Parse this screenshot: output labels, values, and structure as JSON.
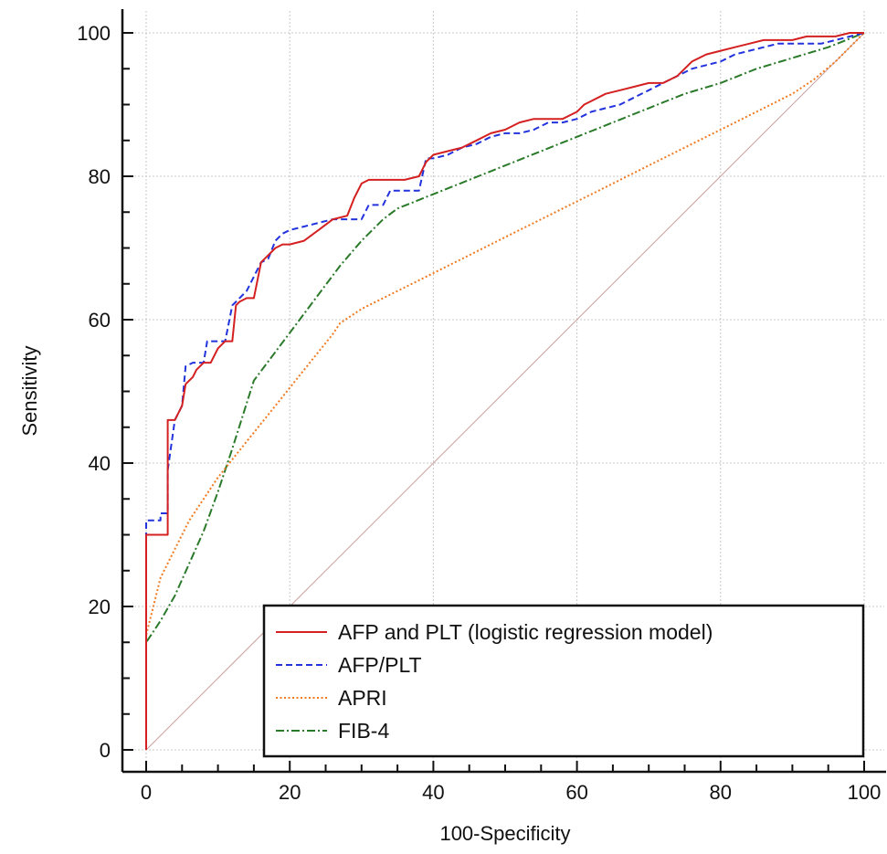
{
  "chart_data": {
    "type": "line",
    "xlabel": "100-Specificity",
    "ylabel": "Sensitivity",
    "xlim": [
      0,
      100
    ],
    "ylim": [
      0,
      100
    ],
    "x_ticks": [
      0,
      20,
      40,
      60,
      80,
      100
    ],
    "y_ticks": [
      0,
      20,
      40,
      60,
      80,
      100
    ],
    "grid": true,
    "legend_position": "bottom-right",
    "reference_line": {
      "x": [
        0,
        100
      ],
      "y": [
        0,
        100
      ],
      "color": "#c9a0a0"
    },
    "series": [
      {
        "name": "AFP and PLT (logistic regression model)",
        "color": "#d42020",
        "style": "solid",
        "x": [
          0,
          0,
          3,
          3,
          4,
          5,
          5.5,
          6.5,
          7,
          8,
          9,
          10,
          11,
          12,
          12.5,
          13,
          14,
          15,
          16,
          17,
          18,
          19,
          20,
          22,
          24,
          26,
          28,
          29,
          30,
          31,
          32,
          34,
          36,
          38,
          39,
          40,
          42,
          44,
          46,
          48,
          50,
          52,
          54,
          56,
          58,
          60,
          61,
          62,
          64,
          66,
          68,
          70,
          72,
          74,
          76,
          78,
          80,
          82,
          84,
          86,
          88,
          90,
          92,
          94,
          96,
          98,
          100
        ],
        "y": [
          0,
          30,
          30,
          46,
          46,
          48,
          51,
          52,
          53,
          54,
          54,
          56,
          57,
          57,
          62,
          62.5,
          63,
          63,
          68,
          69,
          70,
          70.5,
          70.5,
          71,
          72.5,
          74,
          74.5,
          77,
          79,
          79.5,
          79.5,
          79.5,
          79.5,
          80,
          82,
          83,
          83.5,
          84,
          85,
          86,
          86.5,
          87.5,
          88,
          88,
          88,
          89,
          90,
          90.5,
          91.5,
          92,
          92.5,
          93,
          93,
          94,
          96,
          97,
          97.5,
          98,
          98.5,
          99,
          99,
          99,
          99.5,
          99.5,
          99.5,
          100,
          100
        ]
      },
      {
        "name": "AFP/PLT",
        "color": "#2233dd",
        "style": "dashed",
        "x": [
          0,
          0,
          2,
          2,
          3,
          3,
          4,
          5,
          5.5,
          6.5,
          7,
          8,
          8.5,
          9,
          10,
          11,
          12,
          12.5,
          13,
          14,
          15,
          16,
          17,
          18,
          19,
          20,
          22,
          24,
          26,
          28,
          30,
          31,
          32,
          33,
          34,
          36,
          38,
          39,
          40,
          42,
          44,
          46,
          48,
          50,
          52,
          54,
          56,
          58,
          60,
          62,
          64,
          66,
          68,
          70,
          72,
          74,
          76,
          78,
          80,
          82,
          84,
          86,
          88,
          90,
          92,
          94,
          96,
          98,
          100
        ],
        "y": [
          0,
          32,
          32,
          33,
          33,
          39,
          46,
          48,
          53.5,
          54,
          54,
          54,
          57,
          57,
          57,
          57,
          62,
          62.5,
          63,
          64,
          66,
          68,
          68.5,
          71,
          72,
          72.5,
          73,
          73.5,
          74,
          74,
          74,
          76,
          76,
          76,
          78,
          78,
          78,
          82.5,
          82.5,
          83,
          84,
          84.5,
          85.5,
          86,
          86,
          86.5,
          87.5,
          87.5,
          88,
          89,
          89.5,
          90,
          91,
          92,
          93,
          94,
          95,
          95.5,
          96,
          97,
          97.5,
          98,
          98.5,
          98.5,
          98.5,
          98.5,
          99,
          99.5,
          100
        ]
      },
      {
        "name": "APRI",
        "color": "#f07a20",
        "style": "dotted",
        "x": [
          0,
          0,
          1,
          2,
          4,
          6,
          8,
          10,
          12,
          14,
          16,
          18,
          20,
          22,
          24,
          26,
          27,
          30,
          35,
          40,
          45,
          50,
          55,
          60,
          65,
          70,
          75,
          80,
          85,
          90,
          93,
          96,
          98,
          100
        ],
        "y": [
          0,
          16,
          20,
          24,
          28,
          32,
          35,
          38,
          40.5,
          43,
          45.5,
          48,
          50.5,
          53,
          55.5,
          58,
          59.5,
          61.5,
          64,
          66.5,
          69,
          71.5,
          74,
          76.5,
          79,
          81.5,
          84,
          86.5,
          89,
          91.5,
          93.5,
          96,
          98,
          100
        ]
      },
      {
        "name": "FIB-4",
        "color": "#2a7a2a",
        "style": "dashdot",
        "x": [
          0,
          0,
          1,
          2,
          4,
          6,
          8,
          10,
          12,
          15,
          18,
          21,
          24,
          27,
          30,
          33,
          35,
          40,
          45,
          50,
          55,
          60,
          65,
          70,
          75,
          80,
          85,
          90,
          95,
          100
        ],
        "y": [
          0,
          15,
          16.5,
          18,
          21.5,
          26,
          30.5,
          36,
          42,
          51.5,
          55.5,
          59.5,
          63.5,
          67.5,
          71,
          74,
          75.5,
          77.5,
          79.5,
          81.5,
          83.5,
          85.5,
          87.5,
          89.5,
          91.5,
          93,
          95,
          96.5,
          98,
          100
        ]
      }
    ]
  }
}
